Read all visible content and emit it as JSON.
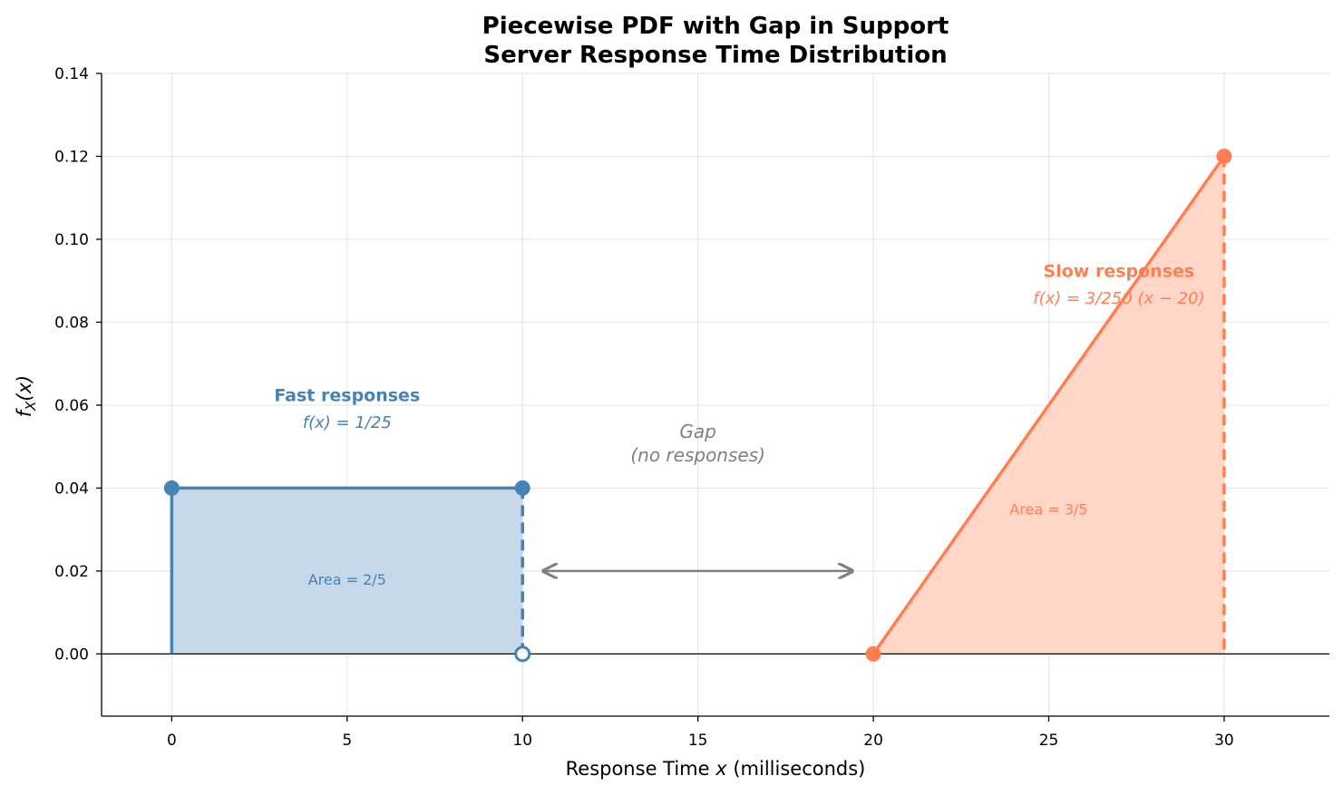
{
  "chart_data": {
    "type": "area",
    "title": "Piecewise PDF with Gap in Support",
    "subtitle": "Server Response Time Distribution",
    "xlabel_prefix": "Response Time ",
    "xlabel_var": "x",
    "xlabel_suffix": " (milliseconds)",
    "ylabel_main": "f",
    "ylabel_sub": "X",
    "ylabel_tail": "(x)",
    "xlim": [
      -2,
      33
    ],
    "ylim": [
      -0.015,
      0.14
    ],
    "xticks": [
      0,
      5,
      10,
      15,
      20,
      25,
      30
    ],
    "xtick_labels": [
      "0",
      "5",
      "10",
      "15",
      "20",
      "25",
      "30"
    ],
    "yticks": [
      0.0,
      0.02,
      0.04,
      0.06,
      0.08,
      0.1,
      0.12,
      0.14
    ],
    "ytick_labels": [
      "0.00",
      "0.02",
      "0.04",
      "0.06",
      "0.08",
      "0.10",
      "0.12",
      "0.14"
    ],
    "grid": true,
    "series": [
      {
        "name": "Fast responses",
        "color": "#4682b4",
        "fill": "#c7d8e8",
        "points": [
          [
            0,
            0.04
          ],
          [
            10,
            0.04
          ]
        ],
        "formula": "f(x) = 1/25",
        "area_label": "Area = 2/5",
        "label_position": [
          5,
          0.0625
        ],
        "formula_position": [
          5,
          0.056
        ],
        "area_label_position": [
          5,
          0.018
        ]
      },
      {
        "name": "Slow responses",
        "color": "#ff7f50",
        "fill": "#ffd6c7",
        "points": [
          [
            20,
            0
          ],
          [
            30,
            0.12
          ]
        ],
        "formula": "f(x) = 3/250 (x − 20)",
        "area_label": "Area = 3/5",
        "label_position": [
          27,
          0.0925
        ],
        "formula_position": [
          27,
          0.086
        ],
        "area_label_position": [
          25,
          0.035
        ]
      }
    ],
    "gap_annotation": {
      "line1": "Gap",
      "line2": "(no responses)",
      "color": "#808080",
      "arrow_from": [
        10.6,
        0.02
      ],
      "arrow_to": [
        19.4,
        0.02
      ],
      "text_position": [
        15,
        0.048
      ]
    }
  }
}
